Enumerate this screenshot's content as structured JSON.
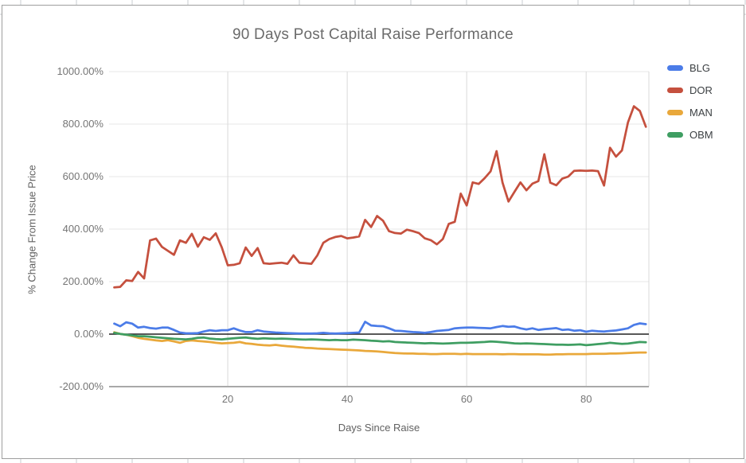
{
  "window": {
    "background": "#ffffff",
    "card_border": "#9e9e9e",
    "grid_color": "#e7e7e7",
    "vgrid_color": "#d9d9d9",
    "zero_line_color": "#212121",
    "axis_line_color": "#a9a9a9",
    "tick_text_color": "#757575",
    "axis_title_color": "#616161",
    "title_color": "#6b6b6b",
    "legend_text_color": "#3c4043"
  },
  "chart_data": {
    "type": "line",
    "title": "90 Days Post Capital Raise Performance",
    "xlabel": "Days Since Raise",
    "ylabel": "% Change From Issue Price",
    "xlim": [
      0,
      90.5
    ],
    "ylim": [
      -200,
      1000
    ],
    "grid": true,
    "legend_position": "right",
    "y_tick_unit": "%",
    "y_ticks": [
      {
        "value": 1000,
        "label": "1000.00%"
      },
      {
        "value": 800,
        "label": "800.00%"
      },
      {
        "value": 600,
        "label": "600.00%"
      },
      {
        "value": 400,
        "label": "400.00%"
      },
      {
        "value": 200,
        "label": "200.00%"
      },
      {
        "value": 0,
        "label": "0.00%"
      },
      {
        "value": -200,
        "label": "-200.00%"
      }
    ],
    "x_ticks": [
      {
        "value": 20,
        "label": "20"
      },
      {
        "value": 40,
        "label": "40"
      },
      {
        "value": 60,
        "label": "60"
      },
      {
        "value": 80,
        "label": "80"
      }
    ],
    "x": [
      1,
      2,
      3,
      4,
      5,
      6,
      7,
      8,
      9,
      10,
      11,
      12,
      13,
      14,
      15,
      16,
      17,
      18,
      19,
      20,
      21,
      22,
      23,
      24,
      25,
      26,
      27,
      28,
      29,
      30,
      31,
      32,
      33,
      34,
      35,
      36,
      37,
      38,
      39,
      40,
      41,
      42,
      43,
      44,
      45,
      46,
      47,
      48,
      49,
      50,
      51,
      52,
      53,
      54,
      55,
      56,
      57,
      58,
      59,
      60,
      61,
      62,
      63,
      64,
      65,
      66,
      67,
      68,
      69,
      70,
      71,
      72,
      73,
      74,
      75,
      76,
      77,
      78,
      79,
      80,
      81,
      82,
      83,
      84,
      85,
      86,
      87,
      88,
      89,
      90
    ],
    "series": [
      {
        "name": "BLG",
        "color": "#4b7ce8",
        "values": [
          40,
          30,
          45,
          40,
          25,
          28,
          23,
          21,
          25,
          25,
          16,
          6,
          3,
          3,
          4,
          10,
          15,
          12,
          15,
          15,
          22,
          14,
          8,
          8,
          15,
          10,
          8,
          6,
          5,
          4,
          3,
          2,
          2,
          2,
          3,
          5,
          3,
          2,
          3,
          4,
          5,
          6,
          47,
          33,
          31,
          30,
          22,
          13,
          12,
          10,
          8,
          7,
          5,
          8,
          12,
          14,
          16,
          22,
          24,
          25,
          25,
          24,
          23,
          22,
          27,
          31,
          28,
          29,
          22,
          18,
          22,
          16,
          19,
          21,
          23,
          16,
          18,
          13,
          15,
          9,
          13,
          11,
          10,
          12,
          14,
          18,
          22,
          35,
          41,
          38
        ]
      },
      {
        "name": "DOR",
        "color": "#c5503e",
        "values": [
          178,
          180,
          205,
          202,
          237,
          212,
          357,
          364,
          332,
          317,
          302,
          357,
          348,
          382,
          333,
          369,
          359,
          384,
          330,
          262,
          264,
          270,
          330,
          298,
          328,
          270,
          268,
          270,
          272,
          268,
          300,
          272,
          270,
          268,
          300,
          348,
          362,
          370,
          374,
          365,
          368,
          372,
          435,
          408,
          450,
          432,
          392,
          385,
          383,
          398,
          392,
          385,
          365,
          358,
          342,
          362,
          420,
          428,
          535,
          490,
          578,
          572,
          594,
          620,
          697,
          577,
          505,
          542,
          578,
          548,
          573,
          583,
          685,
          577,
          567,
          592,
          600,
          622,
          623,
          622,
          623,
          621,
          566,
          710,
          676,
          700,
          806,
          868,
          850,
          790
        ]
      },
      {
        "name": "MAN",
        "color": "#e9a83b",
        "values": [
          7,
          1,
          -2,
          -8,
          -14,
          -18,
          -21,
          -24,
          -26,
          -23,
          -28,
          -33,
          -26,
          -24,
          -26,
          -28,
          -30,
          -33,
          -35,
          -34,
          -33,
          -30,
          -35,
          -37,
          -40,
          -42,
          -43,
          -41,
          -44,
          -46,
          -48,
          -50,
          -52,
          -53,
          -55,
          -56,
          -57,
          -58,
          -59,
          -60,
          -61,
          -62,
          -64,
          -65,
          -66,
          -68,
          -70,
          -72,
          -73,
          -74,
          -74,
          -75,
          -75,
          -76,
          -76,
          -75,
          -75,
          -75,
          -76,
          -75,
          -76,
          -76,
          -76,
          -76,
          -76,
          -77,
          -76,
          -76,
          -77,
          -77,
          -77,
          -77,
          -78,
          -78,
          -77,
          -77,
          -76,
          -76,
          -76,
          -76,
          -75,
          -75,
          -75,
          -74,
          -74,
          -73,
          -72,
          -71,
          -70,
          -70
        ]
      },
      {
        "name": "OBM",
        "color": "#3f9e62",
        "values": [
          5,
          1,
          -2,
          -5,
          -8,
          -8,
          -10,
          -12,
          -14,
          -16,
          -18,
          -19,
          -20,
          -18,
          -14,
          -13,
          -17,
          -19,
          -20,
          -18,
          -16,
          -14,
          -13,
          -16,
          -18,
          -16,
          -17,
          -18,
          -17,
          -18,
          -19,
          -20,
          -21,
          -20,
          -21,
          -22,
          -23,
          -22,
          -23,
          -23,
          -21,
          -22,
          -23,
          -25,
          -26,
          -28,
          -27,
          -30,
          -31,
          -32,
          -33,
          -34,
          -35,
          -34,
          -35,
          -36,
          -35,
          -34,
          -33,
          -33,
          -32,
          -31,
          -30,
          -28,
          -29,
          -31,
          -33,
          -35,
          -36,
          -35,
          -36,
          -37,
          -38,
          -39,
          -40,
          -40,
          -41,
          -40,
          -39,
          -42,
          -40,
          -38,
          -36,
          -33,
          -35,
          -37,
          -36,
          -33,
          -30,
          -31
        ]
      }
    ]
  }
}
